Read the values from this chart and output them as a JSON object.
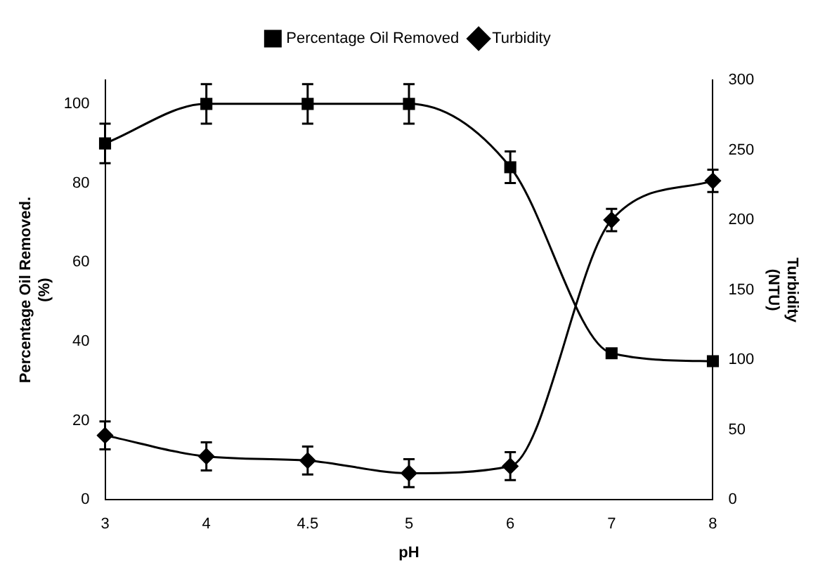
{
  "chart_data": {
    "type": "line",
    "xlabel": "pH",
    "ylabel": "Percentage Oil Removed.\n(%)",
    "y2label": "Turbidity\n(NTU)",
    "categories": [
      "3",
      "4",
      "4.5",
      "5",
      "6",
      "7",
      "8"
    ],
    "series": [
      {
        "name": "Percentage Oil Removed",
        "color": "#000000",
        "marker": "square",
        "values": [
          90,
          100,
          100,
          100,
          84,
          37,
          35
        ],
        "errors": [
          5,
          5,
          5,
          5,
          4,
          null,
          null
        ]
      },
      {
        "name": "Turbidity",
        "color": "#000000",
        "marker": "diamond",
        "axis": "y2",
        "values": [
          46,
          31,
          28,
          19,
          24,
          200,
          228
        ],
        "errors": [
          10,
          10,
          10,
          10,
          10,
          8,
          8
        ]
      }
    ],
    "ylim": [
      0,
      106
    ],
    "yticks": [
      0,
      20,
      40,
      60,
      80,
      100
    ],
    "y2lim": [
      0,
      300
    ],
    "y2ticks": [
      0,
      50,
      100,
      150,
      200,
      250,
      300
    ],
    "legend": "top",
    "grid": false,
    "line_style": "solid"
  }
}
